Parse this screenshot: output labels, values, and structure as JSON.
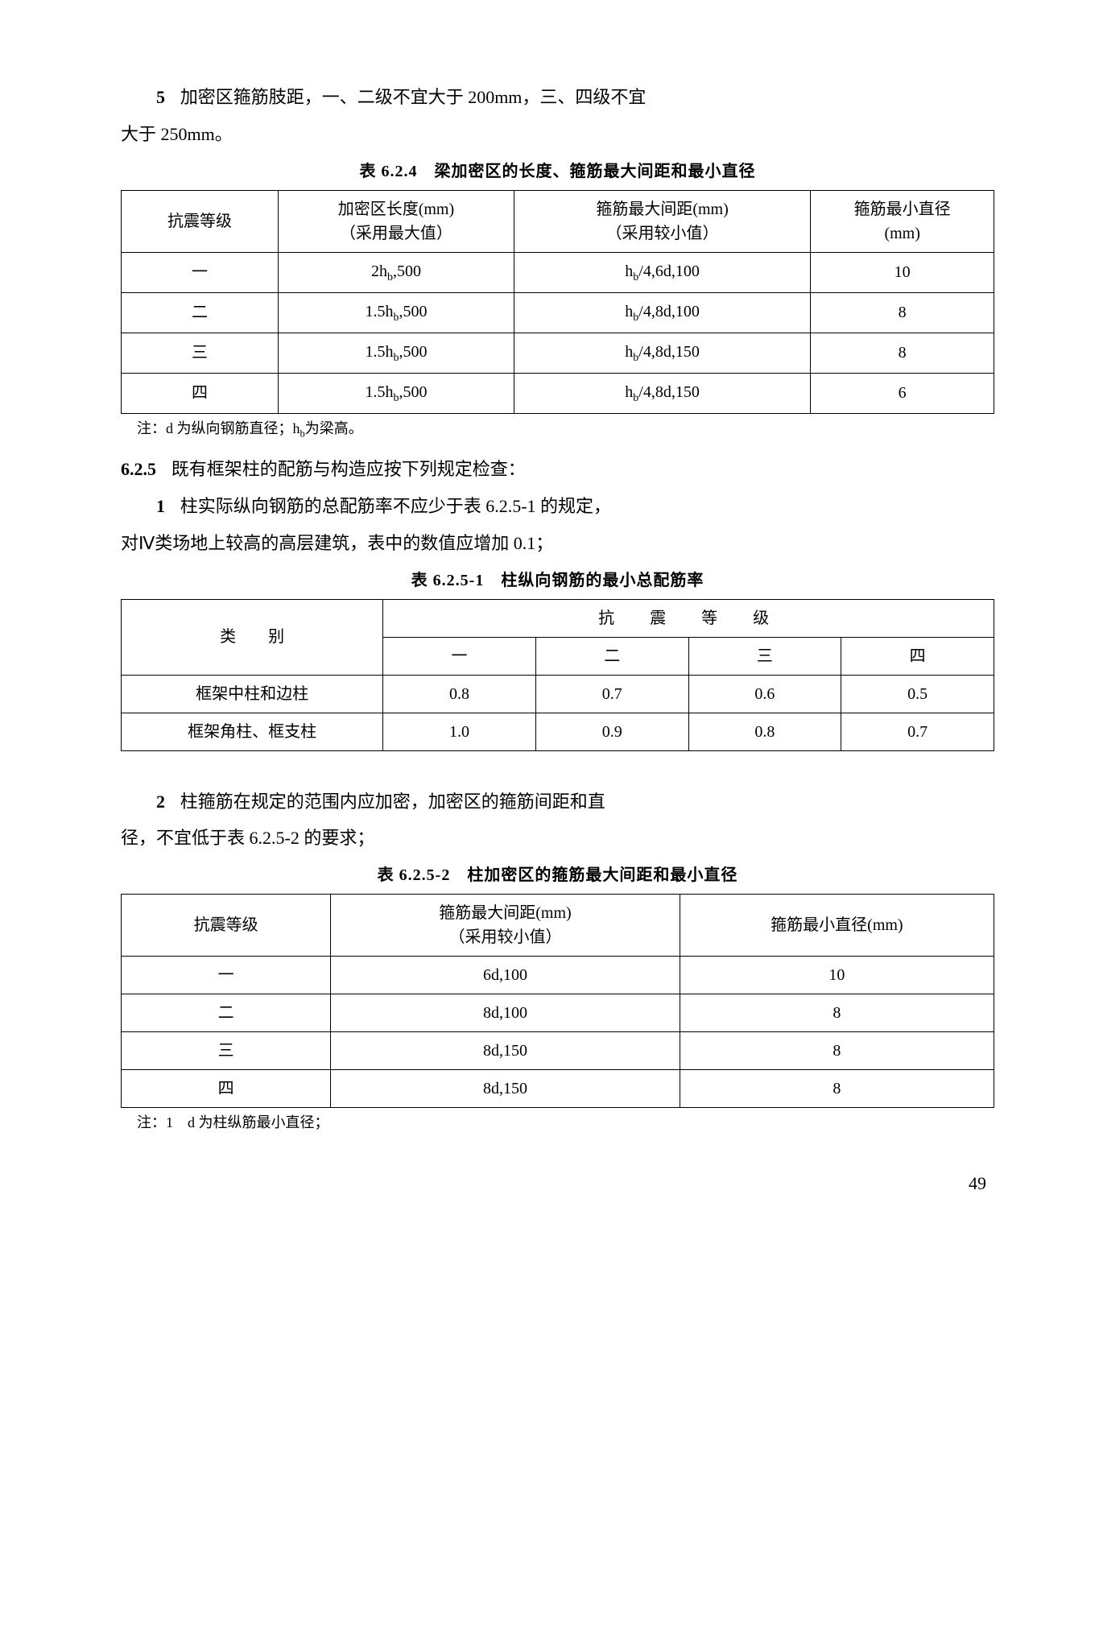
{
  "para1": {
    "num": "5",
    "text_a": "加密区箍筋肢距，一、二级不宜大于 200mm，三、四级不宜",
    "text_b": "大于 250mm。"
  },
  "table1": {
    "caption": "表 6.2.4　梁加密区的长度、箍筋最大间距和最小直径",
    "headers": [
      "抗震等级",
      "加密区长度(mm)\n（采用最大值）",
      "箍筋最大间距(mm)\n（采用较小值）",
      "箍筋最小直径\n(mm)"
    ],
    "col_widths": [
      "18%",
      "27%",
      "34%",
      "21%"
    ],
    "rows": [
      [
        "一",
        "2h_b,500",
        "h_b/4,6d,100",
        "10"
      ],
      [
        "二",
        "1.5h_b,500",
        "h_b/4,8d,100",
        "8"
      ],
      [
        "三",
        "1.5h_b,500",
        "h_b/4,8d,150",
        "8"
      ],
      [
        "四",
        "1.5h_b,500",
        "h_b/4,8d,150",
        "6"
      ]
    ],
    "note": "注：d 为纵向钢筋直径；h_b为梁高。"
  },
  "section_625": {
    "num": "6.2.5",
    "text": "既有框架柱的配筋与构造应按下列规定检查："
  },
  "para_625_1": {
    "num": "1",
    "text_a": "柱实际纵向钢筋的总配筋率不应少于表 6.2.5-1 的规定，",
    "text_b": "对Ⅳ类场地上较高的高层建筑，表中的数值应增加 0.1；"
  },
  "table2": {
    "caption": "表 6.2.5-1　柱纵向钢筋的最小总配筋率",
    "row_header_label": "类　　别",
    "top_header": "抗　震　等　级",
    "sub_headers": [
      "一",
      "二",
      "三",
      "四"
    ],
    "col_widths": [
      "30%",
      "17.5%",
      "17.5%",
      "17.5%",
      "17.5%"
    ],
    "rows": [
      [
        "框架中柱和边柱",
        "0.8",
        "0.7",
        "0.6",
        "0.5"
      ],
      [
        "框架角柱、框支柱",
        "1.0",
        "0.9",
        "0.8",
        "0.7"
      ]
    ]
  },
  "para_625_2": {
    "num": "2",
    "text_a": "柱箍筋在规定的范围内应加密，加密区的箍筋间距和直",
    "text_b": "径，不宜低于表 6.2.5-2 的要求；"
  },
  "table3": {
    "caption": "表 6.2.5-2　柱加密区的箍筋最大间距和最小直径",
    "headers": [
      "抗震等级",
      "箍筋最大间距(mm)\n（采用较小值）",
      "箍筋最小直径(mm)"
    ],
    "col_widths": [
      "24%",
      "40%",
      "36%"
    ],
    "rows": [
      [
        "一",
        "6d,100",
        "10"
      ],
      [
        "二",
        "8d,100",
        "8"
      ],
      [
        "三",
        "8d,150",
        "8"
      ],
      [
        "四",
        "8d,150",
        "8"
      ]
    ],
    "note": "注：1　d 为柱纵筋最小直径；"
  },
  "page_num": "49"
}
